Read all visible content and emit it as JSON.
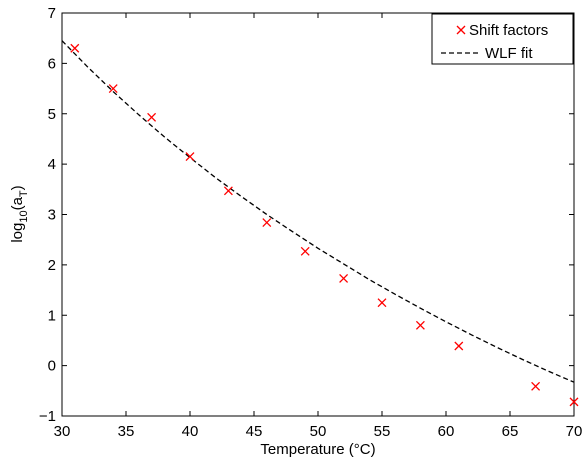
{
  "chart_data": {
    "type": "scatter",
    "title": "",
    "xlabel": "Temperature (°C)",
    "ylabel": "log10(aT)",
    "xlim": [
      30,
      70
    ],
    "ylim": [
      -1,
      7
    ],
    "xticks": [
      30,
      35,
      40,
      45,
      50,
      55,
      60,
      65,
      70
    ],
    "yticks": [
      -1,
      0,
      1,
      2,
      3,
      4,
      5,
      6,
      7
    ],
    "grid": false,
    "legend_position": "top-right",
    "series": [
      {
        "name": "Shift factors",
        "kind": "markers",
        "marker": "x",
        "color": "#ff0000",
        "x": [
          31,
          34,
          37,
          40,
          43,
          46,
          49,
          52,
          55,
          58,
          61,
          67,
          70
        ],
        "y": [
          6.3,
          5.5,
          4.93,
          4.15,
          3.47,
          2.84,
          2.27,
          1.73,
          1.25,
          0.8,
          0.39,
          -0.41,
          -0.72
        ]
      },
      {
        "name": "WLF fit",
        "kind": "line",
        "style": "dashed",
        "color": "#000000",
        "x": [
          30,
          32,
          34,
          36,
          38,
          40,
          42,
          44,
          46,
          48,
          50,
          52,
          54,
          56,
          58,
          60,
          62,
          64,
          66,
          68,
          70
        ],
        "y": [
          6.45,
          5.93,
          5.44,
          4.98,
          4.54,
          4.13,
          3.73,
          3.36,
          3.0,
          2.66,
          2.33,
          2.02,
          1.71,
          1.42,
          1.14,
          0.87,
          0.61,
          0.36,
          0.12,
          -0.11,
          -0.33
        ]
      }
    ]
  }
}
